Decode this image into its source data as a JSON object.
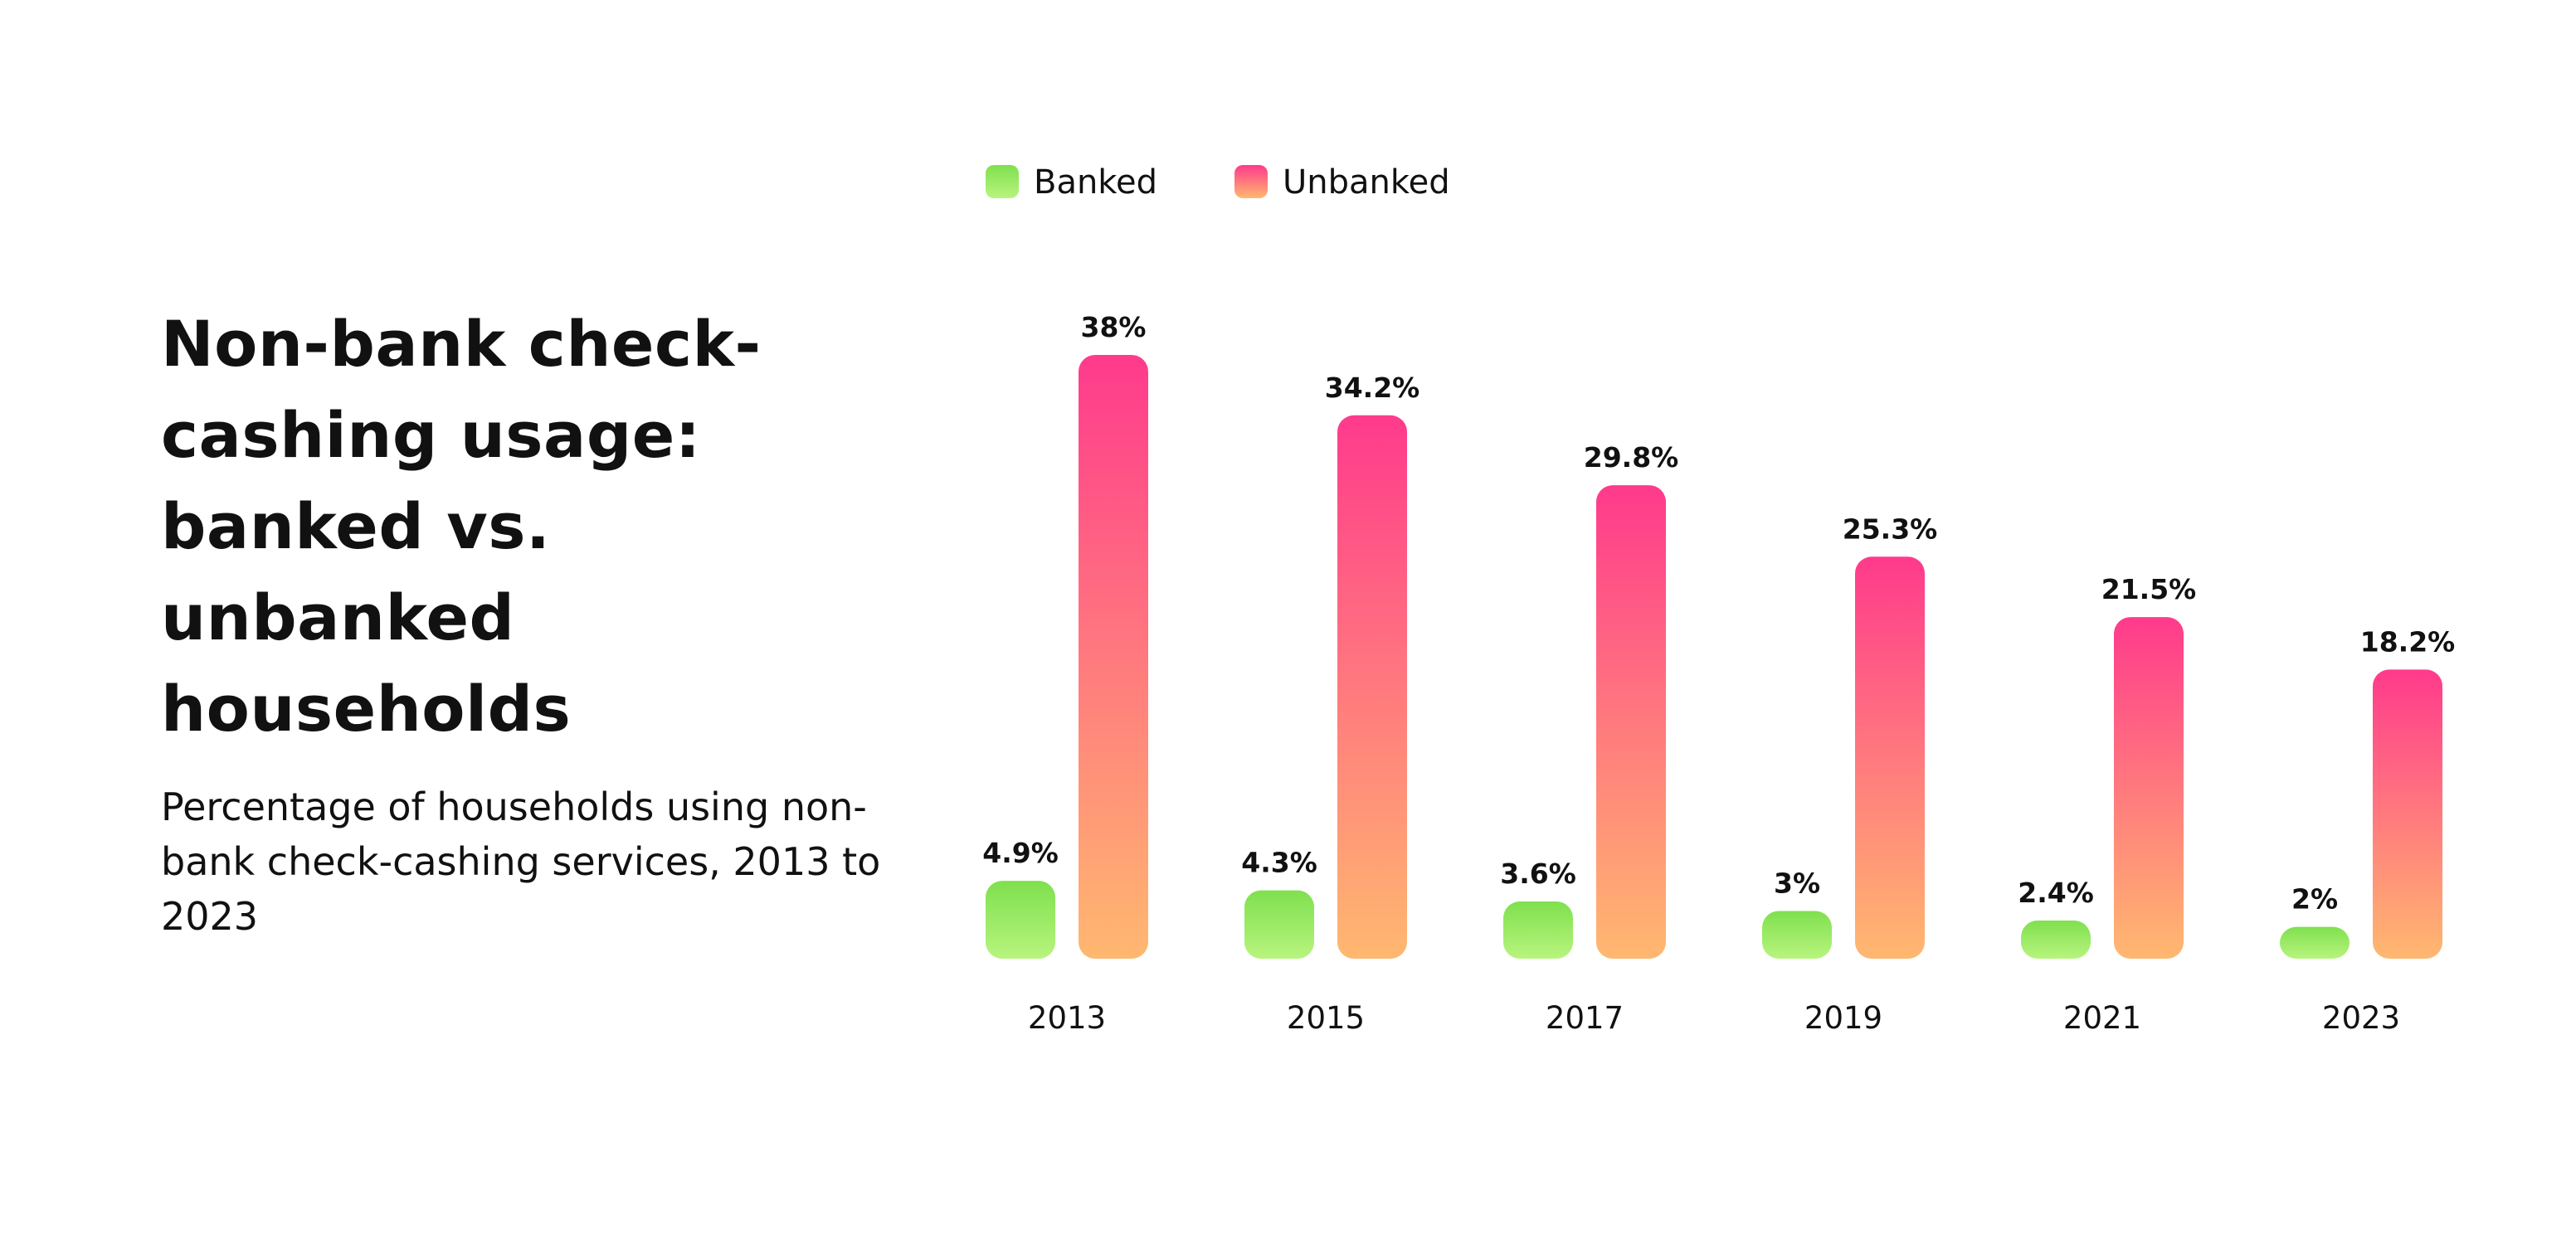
{
  "title": "Non-bank check-cashing usage: banked vs. unbanked households",
  "subtitle": "Percentage of households using non-bank check-cashing services, 2013 to 2023",
  "colors": {
    "banked_top": "#7FE04E",
    "banked_bottom": "#B8F47E",
    "unbanked_top": "#FF3A8C",
    "unbanked_bottom": "#FFB870"
  },
  "chart_data": {
    "type": "bar",
    "categories": [
      "2013",
      "2015",
      "2017",
      "2019",
      "2021",
      "2023"
    ],
    "series": [
      {
        "name": "Banked",
        "values": [
          4.9,
          4.3,
          3.6,
          3,
          2.4,
          2
        ],
        "labels": [
          "4.9%",
          "4.3%",
          "3.6%",
          "3%",
          "2.4%",
          "2%"
        ]
      },
      {
        "name": "Unbanked",
        "values": [
          38,
          34.2,
          29.8,
          25.3,
          21.5,
          18.2
        ],
        "labels": [
          "38%",
          "34.2%",
          "29.8%",
          "25.3%",
          "21.5%",
          "18.2%"
        ]
      }
    ],
    "ylim": [
      0,
      38
    ],
    "grid": false,
    "legend_position": "top-left",
    "unit": "%"
  }
}
